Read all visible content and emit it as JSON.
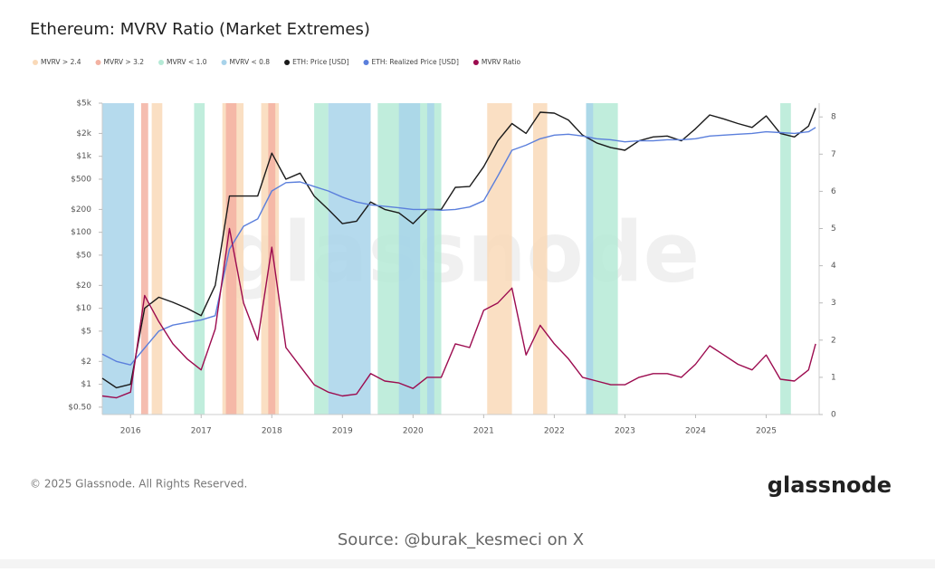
{
  "chart_data": {
    "type": "line",
    "title": "Ethereum: MVRV Ratio (Market Extremes)",
    "xlim": [
      2015.6,
      2025.75
    ],
    "xticks": [
      2016,
      2017,
      2018,
      2019,
      2020,
      2021,
      2022,
      2023,
      2024,
      2025
    ],
    "log_scale": true,
    "ylim": [
      0.4,
      5000
    ],
    "yticks": [
      {
        "value": 0.5,
        "label": "$0.50"
      },
      {
        "value": 1,
        "label": "$1"
      },
      {
        "value": 2,
        "label": "$2"
      },
      {
        "value": 5,
        "label": "$5"
      },
      {
        "value": 10,
        "label": "$10"
      },
      {
        "value": 20,
        "label": "$20"
      },
      {
        "value": 50,
        "label": "$50"
      },
      {
        "value": 100,
        "label": "$100"
      },
      {
        "value": 200,
        "label": "$200"
      },
      {
        "value": 500,
        "label": "$500"
      },
      {
        "value": 1000,
        "label": "$1k"
      },
      {
        "value": 2000,
        "label": "$2k"
      },
      {
        "value": 5000,
        "label": "$5k"
      }
    ],
    "y2lim": [
      0,
      8.37
    ],
    "y2ticks": [
      0,
      1,
      2,
      3,
      4,
      5,
      6,
      7,
      8
    ],
    "bands": [
      {
        "name": "MVRV > 2.4",
        "color": "#f9d9b8",
        "ranges": [
          [
            2016.3,
            2016.45
          ],
          [
            2017.3,
            2017.6
          ],
          [
            2017.85,
            2018.1
          ],
          [
            2021.05,
            2021.4
          ],
          [
            2021.7,
            2021.9
          ]
        ]
      },
      {
        "name": "MVRV > 3.2",
        "color": "#f3b2a2",
        "ranges": [
          [
            2016.15,
            2016.25
          ],
          [
            2017.35,
            2017.5
          ],
          [
            2017.95,
            2018.05
          ]
        ]
      },
      {
        "name": "MVRV < 1.0",
        "color": "#b5ead6",
        "ranges": [
          [
            2016.9,
            2017.05
          ],
          [
            2018.6,
            2018.8
          ],
          [
            2019.5,
            2020.4
          ],
          [
            2022.45,
            2022.9
          ],
          [
            2025.2,
            2025.35
          ]
        ]
      },
      {
        "name": "MVRV < 0.8",
        "color": "#a8d3ea",
        "ranges": [
          [
            2015.6,
            2016.05
          ],
          [
            2018.8,
            2019.4
          ],
          [
            2019.8,
            2020.1
          ],
          [
            2020.2,
            2020.3
          ],
          [
            2022.45,
            2022.55
          ]
        ]
      }
    ],
    "x": [
      2015.6,
      2015.8,
      2016.0,
      2016.2,
      2016.4,
      2016.6,
      2016.8,
      2017.0,
      2017.2,
      2017.4,
      2017.6,
      2017.8,
      2018.0,
      2018.2,
      2018.4,
      2018.6,
      2018.8,
      2019.0,
      2019.2,
      2019.4,
      2019.6,
      2019.8,
      2020.0,
      2020.2,
      2020.4,
      2020.6,
      2020.8,
      2021.0,
      2021.2,
      2021.4,
      2021.6,
      2021.8,
      2022.0,
      2022.2,
      2022.4,
      2022.6,
      2022.8,
      2023.0,
      2023.2,
      2023.4,
      2023.6,
      2023.8,
      2024.0,
      2024.2,
      2024.4,
      2024.6,
      2024.8,
      2025.0,
      2025.2,
      2025.4,
      2025.6,
      2025.7
    ],
    "series": [
      {
        "name": "ETH: Price [USD]",
        "color": "#1a1a1a",
        "values": [
          1.2,
          0.9,
          1,
          10,
          14,
          12,
          10,
          8,
          20,
          300,
          300,
          300,
          1100,
          500,
          600,
          300,
          200,
          130,
          140,
          250,
          200,
          180,
          130,
          200,
          200,
          390,
          400,
          730,
          1600,
          2700,
          2000,
          3800,
          3700,
          3000,
          1900,
          1500,
          1300,
          1200,
          1600,
          1800,
          1850,
          1600,
          2300,
          3500,
          3100,
          2700,
          2400,
          3400,
          2000,
          1800,
          2500,
          4300
        ]
      },
      {
        "name": "ETH: Realized Price [USD]",
        "color": "#5b7fdc",
        "values": [
          2.5,
          2,
          1.8,
          3,
          5,
          6,
          6.5,
          7,
          8,
          60,
          120,
          150,
          350,
          450,
          460,
          400,
          350,
          290,
          250,
          230,
          220,
          210,
          200,
          200,
          195,
          200,
          215,
          260,
          550,
          1200,
          1400,
          1700,
          1900,
          1950,
          1850,
          1700,
          1650,
          1550,
          1600,
          1600,
          1650,
          1650,
          1700,
          1850,
          1900,
          1950,
          2000,
          2100,
          2050,
          2000,
          2100,
          2400
        ]
      },
      {
        "name": "MVRV Ratio",
        "color": "#9c0b4f",
        "axis": "y2",
        "values": [
          0.5,
          0.45,
          0.6,
          3.2,
          2.5,
          1.9,
          1.5,
          1.2,
          2.3,
          5.0,
          3.0,
          2.0,
          4.5,
          1.8,
          1.3,
          0.8,
          0.6,
          0.5,
          0.55,
          1.1,
          0.9,
          0.85,
          0.7,
          1.0,
          1.0,
          1.9,
          1.8,
          2.8,
          3.0,
          3.4,
          1.6,
          2.4,
          1.9,
          1.5,
          1.0,
          0.9,
          0.8,
          0.8,
          1.0,
          1.1,
          1.1,
          1.0,
          1.35,
          1.85,
          1.6,
          1.35,
          1.2,
          1.6,
          0.95,
          0.9,
          1.2,
          1.9
        ]
      }
    ]
  },
  "watermark": "glassnode",
  "copyright": "© 2025 Glassnode. All Rights Reserved.",
  "brand": "glassnode",
  "source": "Source: @burak_kesmeci on X"
}
